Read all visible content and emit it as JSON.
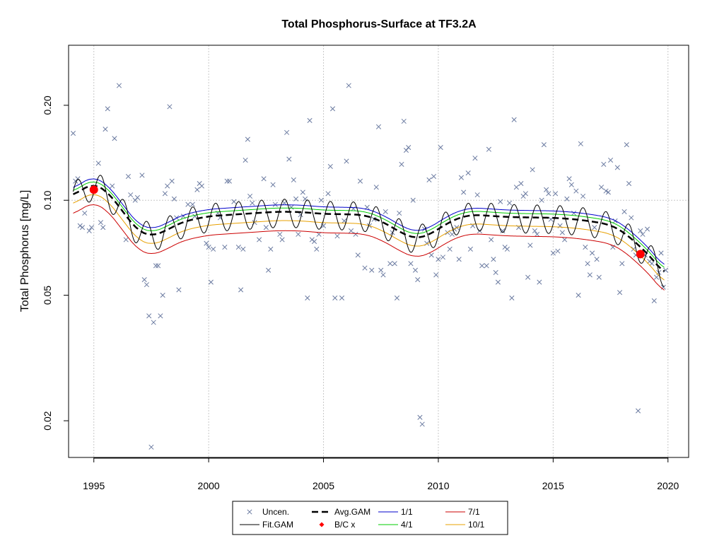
{
  "chart_data": {
    "type": "scatter",
    "title": "Total Phosphorus-Surface at TF3.2A",
    "ylabel": "Total Phosphorus [mg/L]",
    "xlabel": "",
    "x_scale": "linear",
    "y_scale": "log",
    "xlim": [
      1993.9,
      2020.9
    ],
    "ylim": [
      0.0153,
      0.31
    ],
    "x_ticks": [
      1995,
      2000,
      2005,
      2010,
      2015,
      2020
    ],
    "x_tick_labels": [
      "1995",
      "2000",
      "2005",
      "2010",
      "2015",
      "2020"
    ],
    "y_ticks": [
      0.02,
      0.05,
      0.1,
      0.2
    ],
    "y_tick_labels": [
      "0.02",
      "0.05",
      "0.10",
      "0.20"
    ],
    "grid": true,
    "legend_position": "bottom",
    "colors": {
      "points": "#6a7aa0",
      "fit_gam": "#000000",
      "avg_gam": "#000000",
      "bc": "#ff0000",
      "m1": "#0000cc",
      "m4": "#00cc00",
      "m7": "#cc0000",
      "m10": "#e8a000"
    },
    "legend": [
      {
        "key": "uncen",
        "label": "Uncen.",
        "symbol": "x",
        "color": "#6a7aa0"
      },
      {
        "key": "avg",
        "label": "Avg.GAM",
        "symbol": "dash",
        "color": "#000000"
      },
      {
        "key": "m1",
        "label": "1/1",
        "symbol": "line",
        "color": "#0000cc"
      },
      {
        "key": "m7",
        "label": "7/1",
        "symbol": "line",
        "color": "#cc0000"
      },
      {
        "key": "fit",
        "label": "Fit.GAM",
        "symbol": "line",
        "color": "#000000"
      },
      {
        "key": "bc",
        "label": "B/C x",
        "symbol": "diamond",
        "color": "#ff0000"
      },
      {
        "key": "m4",
        "label": "4/1",
        "symbol": "line",
        "color": "#00cc00"
      },
      {
        "key": "m10",
        "label": "10/1",
        "symbol": "line",
        "color": "#e8a000"
      }
    ],
    "bc_points": [
      {
        "x": 1995.0,
        "y": 0.108
      },
      {
        "x": 2018.8,
        "y": 0.0675
      }
    ],
    "trend_knots": [
      [
        1994.1,
        0.103
      ],
      [
        1994.6,
        0.11
      ],
      [
        1995.0,
        0.113
      ],
      [
        1995.5,
        0.108
      ],
      [
        1996.0,
        0.098
      ],
      [
        1996.5,
        0.087
      ],
      [
        1997.0,
        0.079
      ],
      [
        1997.5,
        0.077
      ],
      [
        1998.0,
        0.079
      ],
      [
        1998.5,
        0.083
      ],
      [
        1999.0,
        0.086
      ],
      [
        2000.0,
        0.089
      ],
      [
        2001.0,
        0.09
      ],
      [
        2002.0,
        0.091
      ],
      [
        2003.0,
        0.092
      ],
      [
        2004.0,
        0.0918
      ],
      [
        2005.0,
        0.0905
      ],
      [
        2006.0,
        0.0903
      ],
      [
        2006.8,
        0.0898
      ],
      [
        2007.5,
        0.086
      ],
      [
        2008.0,
        0.082
      ],
      [
        2008.5,
        0.078
      ],
      [
        2009.0,
        0.0755
      ],
      [
        2009.5,
        0.077
      ],
      [
        2010.0,
        0.081
      ],
      [
        2010.5,
        0.0855
      ],
      [
        2011.0,
        0.0885
      ],
      [
        2011.5,
        0.09
      ],
      [
        2012.0,
        0.0895
      ],
      [
        2013.0,
        0.0885
      ],
      [
        2014.0,
        0.0882
      ],
      [
        2015.0,
        0.088
      ],
      [
        2016.0,
        0.087
      ],
      [
        2017.0,
        0.085
      ],
      [
        2017.5,
        0.0835
      ],
      [
        2018.0,
        0.08
      ],
      [
        2018.5,
        0.0745
      ],
      [
        2019.0,
        0.069
      ],
      [
        2019.5,
        0.063
      ],
      [
        2019.85,
        0.058
      ]
    ],
    "season_offsets": {
      "1/1": 0.022,
      "4/1": 0.012,
      "7/1": -0.06,
      "10/1": -0.028
    },
    "seasonal_amplitude": 0.045,
    "observations": [
      [
        1994.1,
        0.163
      ],
      [
        1994.2,
        0.115
      ],
      [
        1994.3,
        0.117
      ],
      [
        1994.4,
        0.083
      ],
      [
        1994.5,
        0.082
      ],
      [
        1994.6,
        0.091
      ],
      [
        1994.8,
        0.08
      ],
      [
        1994.9,
        0.082
      ],
      [
        1995.0,
        0.108
      ],
      [
        1995.2,
        0.131
      ],
      [
        1995.3,
        0.085
      ],
      [
        1995.4,
        0.082
      ],
      [
        1995.5,
        0.168
      ],
      [
        1995.6,
        0.195
      ],
      [
        1995.8,
        0.111
      ],
      [
        1995.9,
        0.157
      ],
      [
        1996.1,
        0.231
      ],
      [
        1996.4,
        0.075
      ],
      [
        1996.5,
        0.119
      ],
      [
        1996.6,
        0.104
      ],
      [
        1996.8,
        0.1
      ],
      [
        1996.9,
        0.102
      ],
      [
        1997.1,
        0.12
      ],
      [
        1997.2,
        0.056
      ],
      [
        1997.3,
        0.054
      ],
      [
        1997.4,
        0.043
      ],
      [
        1997.5,
        0.0165
      ],
      [
        1997.6,
        0.041
      ],
      [
        1997.7,
        0.062
      ],
      [
        1997.8,
        0.062
      ],
      [
        1997.9,
        0.043
      ],
      [
        1998.0,
        0.05
      ],
      [
        1998.1,
        0.105
      ],
      [
        1998.2,
        0.111
      ],
      [
        1998.3,
        0.198
      ],
      [
        1998.4,
        0.115
      ],
      [
        1998.5,
        0.101
      ],
      [
        1998.6,
        0.088
      ],
      [
        1998.7,
        0.052
      ],
      [
        1998.9,
        0.089
      ],
      [
        1999.1,
        0.097
      ],
      [
        1999.3,
        0.097
      ],
      [
        1999.4,
        0.089
      ],
      [
        1999.5,
        0.108
      ],
      [
        1999.6,
        0.113
      ],
      [
        1999.7,
        0.111
      ],
      [
        1999.9,
        0.073
      ],
      [
        2000.0,
        0.071
      ],
      [
        2000.1,
        0.055
      ],
      [
        2000.2,
        0.07
      ],
      [
        2000.4,
        0.091
      ],
      [
        2000.5,
        0.088
      ],
      [
        2000.7,
        0.071
      ],
      [
        2000.8,
        0.115
      ],
      [
        2000.9,
        0.115
      ],
      [
        2001.1,
        0.099
      ],
      [
        2001.3,
        0.071
      ],
      [
        2001.4,
        0.052
      ],
      [
        2001.5,
        0.07
      ],
      [
        2001.6,
        0.134
      ],
      [
        2001.7,
        0.156
      ],
      [
        2001.8,
        0.103
      ],
      [
        2001.9,
        0.098
      ],
      [
        2002.0,
        0.085
      ],
      [
        2002.2,
        0.075
      ],
      [
        2002.4,
        0.117
      ],
      [
        2002.5,
        0.082
      ],
      [
        2002.6,
        0.06
      ],
      [
        2002.7,
        0.07
      ],
      [
        2002.8,
        0.112
      ],
      [
        2002.9,
        0.097
      ],
      [
        2003.1,
        0.078
      ],
      [
        2003.2,
        0.075
      ],
      [
        2003.3,
        0.098
      ],
      [
        2003.4,
        0.164
      ],
      [
        2003.5,
        0.135
      ],
      [
        2003.6,
        0.095
      ],
      [
        2003.7,
        0.116
      ],
      [
        2003.8,
        0.101
      ],
      [
        2003.9,
        0.078
      ],
      [
        2004.0,
        0.09
      ],
      [
        2004.1,
        0.106
      ],
      [
        2004.2,
        0.101
      ],
      [
        2004.3,
        0.049
      ],
      [
        2004.4,
        0.179
      ],
      [
        2004.5,
        0.075
      ],
      [
        2004.6,
        0.074
      ],
      [
        2004.7,
        0.07
      ],
      [
        2004.8,
        0.078
      ],
      [
        2004.9,
        0.1
      ],
      [
        2005.0,
        0.083
      ],
      [
        2005.2,
        0.105
      ],
      [
        2005.3,
        0.128
      ],
      [
        2005.4,
        0.195
      ],
      [
        2005.5,
        0.049
      ],
      [
        2005.6,
        0.077
      ],
      [
        2005.8,
        0.049
      ],
      [
        2005.9,
        0.086
      ],
      [
        2006.0,
        0.133
      ],
      [
        2006.1,
        0.231
      ],
      [
        2006.2,
        0.08
      ],
      [
        2006.3,
        0.094
      ],
      [
        2006.4,
        0.078
      ],
      [
        2006.5,
        0.067
      ],
      [
        2006.6,
        0.115
      ],
      [
        2006.8,
        0.061
      ],
      [
        2006.9,
        0.095
      ],
      [
        2007.0,
        0.083
      ],
      [
        2007.1,
        0.06
      ],
      [
        2007.2,
        0.087
      ],
      [
        2007.3,
        0.11
      ],
      [
        2007.4,
        0.171
      ],
      [
        2007.5,
        0.06
      ],
      [
        2007.6,
        0.058
      ],
      [
        2007.7,
        0.092
      ],
      [
        2007.9,
        0.063
      ],
      [
        2008.0,
        0.079
      ],
      [
        2008.1,
        0.063
      ],
      [
        2008.2,
        0.049
      ],
      [
        2008.3,
        0.091
      ],
      [
        2008.4,
        0.13
      ],
      [
        2008.5,
        0.178
      ],
      [
        2008.6,
        0.144
      ],
      [
        2008.7,
        0.147
      ],
      [
        2008.8,
        0.063
      ],
      [
        2008.9,
        0.1
      ],
      [
        2009.0,
        0.06
      ],
      [
        2009.1,
        0.056
      ],
      [
        2009.2,
        0.0205
      ],
      [
        2009.3,
        0.0195
      ],
      [
        2009.4,
        0.081
      ],
      [
        2009.5,
        0.073
      ],
      [
        2009.6,
        0.116
      ],
      [
        2009.7,
        0.067
      ],
      [
        2009.8,
        0.119
      ],
      [
        2009.9,
        0.058
      ],
      [
        2010.0,
        0.065
      ],
      [
        2010.1,
        0.147
      ],
      [
        2010.2,
        0.066
      ],
      [
        2010.4,
        0.079
      ],
      [
        2010.5,
        0.07
      ],
      [
        2010.6,
        0.078
      ],
      [
        2010.7,
        0.081
      ],
      [
        2010.8,
        0.082
      ],
      [
        2010.9,
        0.065
      ],
      [
        2011.0,
        0.118
      ],
      [
        2011.1,
        0.106
      ],
      [
        2011.3,
        0.122
      ],
      [
        2011.4,
        0.07
      ],
      [
        2011.5,
        0.083
      ],
      [
        2011.6,
        0.136
      ],
      [
        2011.7,
        0.104
      ],
      [
        2011.8,
        0.08
      ],
      [
        2011.9,
        0.062
      ],
      [
        2012.1,
        0.062
      ],
      [
        2012.2,
        0.145
      ],
      [
        2012.3,
        0.075
      ],
      [
        2012.4,
        0.065
      ],
      [
        2012.5,
        0.059
      ],
      [
        2012.6,
        0.055
      ],
      [
        2012.7,
        0.099
      ],
      [
        2012.8,
        0.08
      ],
      [
        2012.9,
        0.071
      ],
      [
        2013.0,
        0.07
      ],
      [
        2013.1,
        0.098
      ],
      [
        2013.2,
        0.049
      ],
      [
        2013.3,
        0.18
      ],
      [
        2013.4,
        0.11
      ],
      [
        2013.5,
        0.082
      ],
      [
        2013.6,
        0.113
      ],
      [
        2013.7,
        0.103
      ],
      [
        2013.8,
        0.105
      ],
      [
        2013.9,
        0.057
      ],
      [
        2014.0,
        0.072
      ],
      [
        2014.1,
        0.125
      ],
      [
        2014.2,
        0.08
      ],
      [
        2014.3,
        0.078
      ],
      [
        2014.4,
        0.055
      ],
      [
        2014.5,
        0.1
      ],
      [
        2014.6,
        0.15
      ],
      [
        2014.7,
        0.108
      ],
      [
        2014.8,
        0.105
      ],
      [
        2014.9,
        0.087
      ],
      [
        2015.0,
        0.068
      ],
      [
        2015.1,
        0.105
      ],
      [
        2015.2,
        0.069
      ],
      [
        2015.3,
        0.083
      ],
      [
        2015.4,
        0.079
      ],
      [
        2015.5,
        0.075
      ],
      [
        2015.6,
        0.101
      ],
      [
        2015.7,
        0.117
      ],
      [
        2015.8,
        0.112
      ],
      [
        2015.9,
        0.091
      ],
      [
        2016.0,
        0.107
      ],
      [
        2016.1,
        0.05
      ],
      [
        2016.2,
        0.151
      ],
      [
        2016.3,
        0.103
      ],
      [
        2016.4,
        0.071
      ],
      [
        2016.5,
        0.063
      ],
      [
        2016.6,
        0.058
      ],
      [
        2016.7,
        0.068
      ],
      [
        2016.8,
        0.082
      ],
      [
        2016.9,
        0.065
      ],
      [
        2017.0,
        0.057
      ],
      [
        2017.1,
        0.11
      ],
      [
        2017.2,
        0.13
      ],
      [
        2017.3,
        0.107
      ],
      [
        2017.4,
        0.106
      ],
      [
        2017.5,
        0.134
      ],
      [
        2017.6,
        0.071
      ],
      [
        2017.7,
        0.086
      ],
      [
        2017.8,
        0.127
      ],
      [
        2017.9,
        0.051
      ],
      [
        2018.0,
        0.063
      ],
      [
        2018.1,
        0.092
      ],
      [
        2018.2,
        0.15
      ],
      [
        2018.3,
        0.113
      ],
      [
        2018.4,
        0.088
      ],
      [
        2018.5,
        0.07
      ],
      [
        2018.6,
        0.067
      ],
      [
        2018.7,
        0.0215
      ],
      [
        2018.8,
        0.08
      ],
      [
        2018.9,
        0.078
      ],
      [
        2019.0,
        0.067
      ],
      [
        2019.1,
        0.081
      ],
      [
        2019.2,
        0.064
      ],
      [
        2019.3,
        0.063
      ],
      [
        2019.4,
        0.048
      ],
      [
        2019.5,
        0.057
      ],
      [
        2019.6,
        0.059
      ],
      [
        2019.7,
        0.068
      ],
      [
        2019.8,
        0.053
      ],
      [
        2019.9,
        0.06
      ]
    ]
  }
}
